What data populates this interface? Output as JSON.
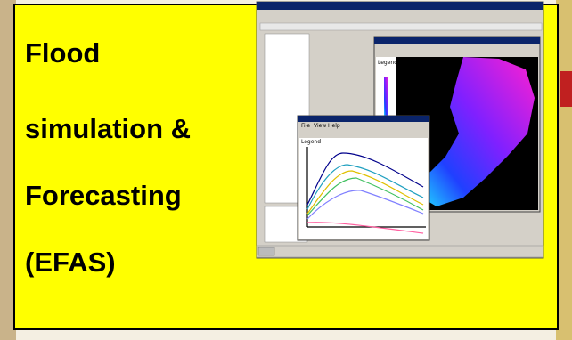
{
  "slide": {
    "lines": [
      "Flood",
      "simulation &",
      "Forecasting",
      "(EFAS)"
    ]
  },
  "screenshot": {
    "map_legend": "Legend",
    "chart_legend": "Legend",
    "menu": [
      "File",
      "View",
      "Help"
    ]
  }
}
